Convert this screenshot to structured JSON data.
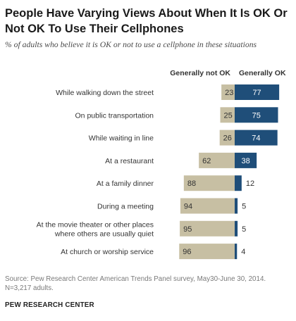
{
  "title": "People Have Varying Views About When It Is OK Or Not OK To Use Their Cellphones",
  "subtitle": "% of adults who believe it is OK or not to use a cellphone in these situations",
  "source": "Source: Pew Research Center American Trends Panel survey, May30-June 30, 2014. N=3,217 adults.",
  "org": "PEW RESEARCH CENTER",
  "colors": {
    "not_ok": "#c7bfa3",
    "ok": "#1f4e79",
    "text": "#333333",
    "ok_text": "#ffffff"
  },
  "chart_data": {
    "type": "bar",
    "orientation": "horizontal",
    "stacked": "diverging",
    "categories": [
      [
        "While walking down the street"
      ],
      [
        "On public transportation"
      ],
      [
        "While waiting in line"
      ],
      [
        "At a restaurant"
      ],
      [
        "At a family dinner"
      ],
      [
        "During a meeting"
      ],
      [
        "At the movie theater or other places",
        "where others are usually quiet"
      ],
      [
        "At church or worship service"
      ]
    ],
    "series": [
      {
        "name": "Generally not OK",
        "values": [
          23,
          25,
          26,
          62,
          88,
          94,
          95,
          96
        ]
      },
      {
        "name": "Generally OK",
        "values": [
          77,
          75,
          74,
          38,
          12,
          5,
          5,
          4
        ]
      }
    ],
    "xlim": [
      0,
      100
    ],
    "legend": "top",
    "grid": false
  }
}
